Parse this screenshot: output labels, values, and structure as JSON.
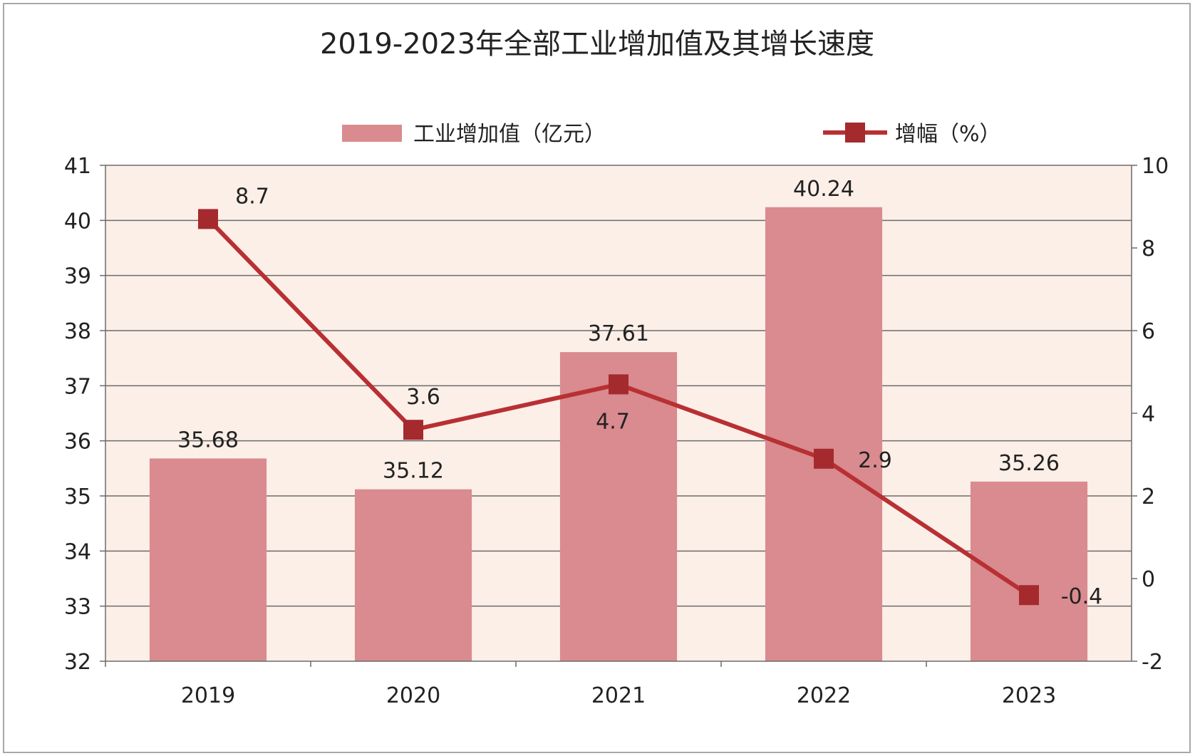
{
  "chart_data": {
    "type": "bar+line",
    "title": "2019-2023年全部工业增加值及其增长速度",
    "categories": [
      "2019",
      "2020",
      "2021",
      "2022",
      "2023"
    ],
    "series": [
      {
        "name": "工业增加值（亿元）",
        "type": "bar",
        "axis": "left",
        "values": [
          35.68,
          35.12,
          37.61,
          40.24,
          35.26
        ],
        "labels": [
          "35.68",
          "35.12",
          "37.61",
          "40.24",
          "35.26"
        ]
      },
      {
        "name": "增幅（%）",
        "type": "line",
        "axis": "right",
        "values": [
          8.7,
          3.6,
          4.7,
          2.9,
          -0.4
        ],
        "labels": [
          "8.7",
          "3.6",
          "4.7",
          "2.9",
          "-0.4"
        ]
      }
    ],
    "left_axis": {
      "min": 32,
      "max": 41,
      "step": 1,
      "ticks": [
        "32",
        "33",
        "34",
        "35",
        "36",
        "37",
        "38",
        "39",
        "40",
        "41"
      ]
    },
    "right_axis": {
      "min": -2,
      "max": 10,
      "step": 2,
      "ticks": [
        "-2",
        "0",
        "2",
        "4",
        "6",
        "8",
        "10"
      ]
    },
    "grid": true,
    "legend": "top-center",
    "colors": {
      "bar": "#d98b8f",
      "line": "#b83033",
      "plot_bg": "#fcefe8",
      "grid": "#6b6b6b",
      "text": "#222222"
    }
  }
}
